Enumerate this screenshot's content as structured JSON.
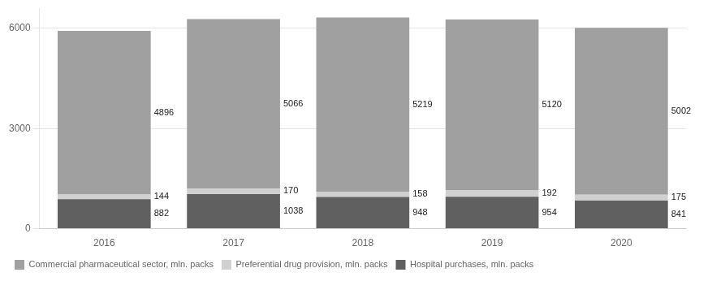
{
  "chart_data": {
    "type": "bar",
    "stacked": true,
    "categories": [
      "2016",
      "2017",
      "2018",
      "2019",
      "2020"
    ],
    "series": [
      {
        "name": "Hospital purchases, mln. packs",
        "color": "#606060",
        "values": [
          882,
          1038,
          948,
          954,
          841
        ]
      },
      {
        "name": "Preferential drug provision, mln. packs",
        "color": "#d0d0d0",
        "values": [
          144,
          170,
          158,
          192,
          175
        ]
      },
      {
        "name": "Commercial pharmaceutical sector, mln. packs",
        "color": "#a0a0a0",
        "values": [
          4896,
          5066,
          5219,
          5120,
          5002
        ]
      }
    ],
    "ylim": [
      0,
      6600
    ],
    "yticks": [
      0,
      3000,
      6000
    ],
    "grid": true,
    "legend": "bottom",
    "data_labels": true
  }
}
